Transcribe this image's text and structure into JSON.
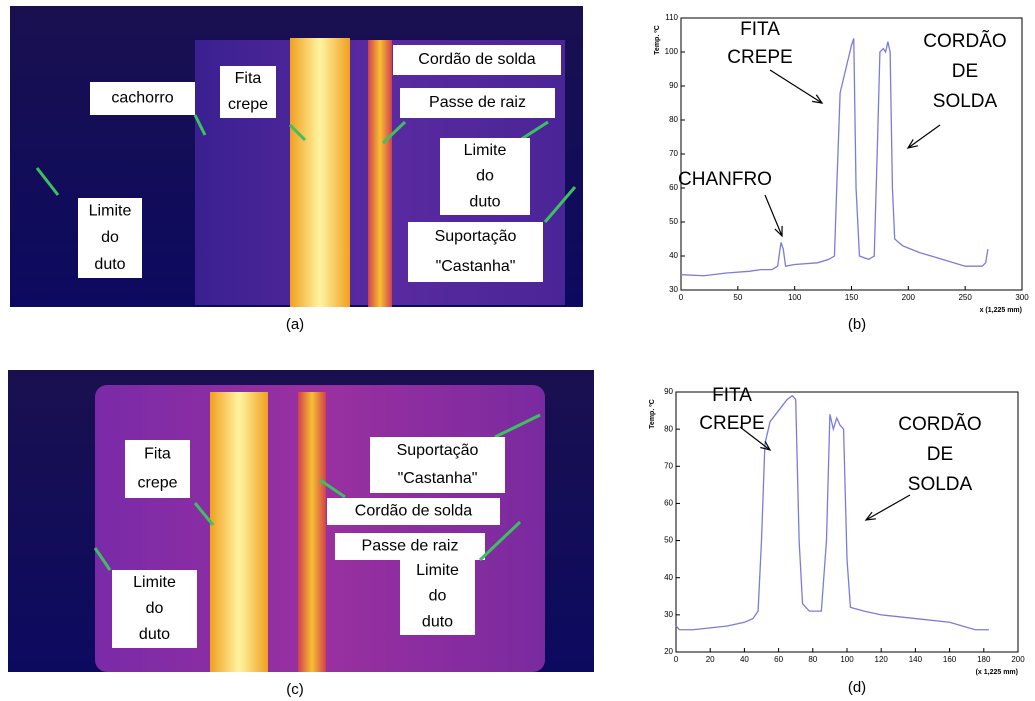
{
  "chart_data": [
    {
      "type": "line",
      "ylabel": "Temp. ºC",
      "xlabel": "x (1,225 mm)",
      "caption": "(b)",
      "color": "#7b7bdc",
      "x": [
        0,
        20,
        40,
        60,
        70,
        80,
        85,
        88,
        90,
        92,
        100,
        120,
        130,
        135,
        137,
        140,
        145,
        150,
        152,
        154,
        157,
        165,
        170,
        173,
        175,
        178,
        180,
        182,
        184,
        186,
        188,
        195,
        210,
        230,
        250,
        265,
        268,
        270
      ],
      "y": [
        34.5,
        34.2,
        35,
        35.5,
        36,
        36,
        37,
        44,
        42,
        37,
        37.5,
        38,
        39,
        40,
        60,
        88,
        95,
        102,
        104,
        60,
        40,
        39,
        40,
        75,
        100,
        101,
        100,
        103,
        100,
        60,
        45,
        43,
        41,
        39,
        37,
        37,
        38,
        42
      ],
      "xlim": [
        0,
        300
      ],
      "ylim": [
        30,
        110
      ],
      "xticks": [
        0,
        50,
        100,
        150,
        200,
        250,
        300
      ],
      "yticks": [
        30,
        40,
        50,
        60,
        70,
        80,
        90,
        100,
        110
      ],
      "annotations": [
        {
          "lines": [
            "FITA",
            "CREPE"
          ]
        },
        {
          "lines": [
            "CORDÃO",
            "DE",
            "SOLDA"
          ]
        },
        {
          "lines": [
            "CHANFRO"
          ]
        }
      ]
    },
    {
      "type": "line",
      "ylabel": "Temp. ºC",
      "xlabel": "(x 1,225 mm)",
      "caption": "(d)",
      "color": "#7b7bdc",
      "x": [
        0,
        2,
        10,
        20,
        30,
        40,
        45,
        48,
        50,
        52,
        55,
        60,
        65,
        68,
        70,
        72,
        74,
        78,
        85,
        88,
        90,
        92,
        94,
        96,
        98,
        100,
        102,
        110,
        120,
        140,
        160,
        175,
        180,
        183
      ],
      "y": [
        27,
        26,
        26,
        26.5,
        27,
        28,
        29,
        31,
        50,
        76,
        82,
        85,
        88,
        89,
        88,
        50,
        33,
        31,
        31,
        50,
        84,
        80,
        83,
        81,
        80,
        45,
        32,
        31,
        30,
        29,
        28,
        26,
        26,
        26
      ],
      "xlim": [
        0,
        200
      ],
      "ylim": [
        20,
        90
      ],
      "xticks": [
        0,
        20,
        40,
        60,
        80,
        100,
        120,
        140,
        160,
        180,
        200
      ],
      "yticks": [
        20,
        30,
        40,
        50,
        60,
        70,
        80,
        90
      ],
      "annotations": [
        {
          "lines": [
            "FITA",
            "CREPE"
          ]
        },
        {
          "lines": [
            "CORDÃO",
            "DE",
            "SOLDA"
          ]
        }
      ]
    }
  ],
  "images": [
    {
      "caption": "(a)",
      "labels": [
        {
          "lines": [
            "cachorro"
          ]
        },
        {
          "lines": [
            "Fita",
            "crepe"
          ]
        },
        {
          "lines": [
            "Cordão de solda"
          ]
        },
        {
          "lines": [
            "Passe de raiz"
          ]
        },
        {
          "lines": [
            "Limite",
            "do",
            "duto"
          ]
        },
        {
          "lines": [
            "Limite",
            "do",
            "duto"
          ]
        },
        {
          "lines": [
            "Suportação",
            "\"Castanha\""
          ]
        }
      ]
    },
    {
      "caption": "(c)",
      "labels": [
        {
          "lines": [
            "Fita",
            "crepe"
          ]
        },
        {
          "lines": [
            "Suportação",
            "\"Castanha\""
          ]
        },
        {
          "lines": [
            "Cordão de solda"
          ]
        },
        {
          "lines": [
            "Passe de raiz"
          ]
        },
        {
          "lines": [
            "Limite",
            "do",
            "duto"
          ]
        },
        {
          "lines": [
            "Limite",
            "do",
            "duto"
          ]
        }
      ]
    }
  ]
}
